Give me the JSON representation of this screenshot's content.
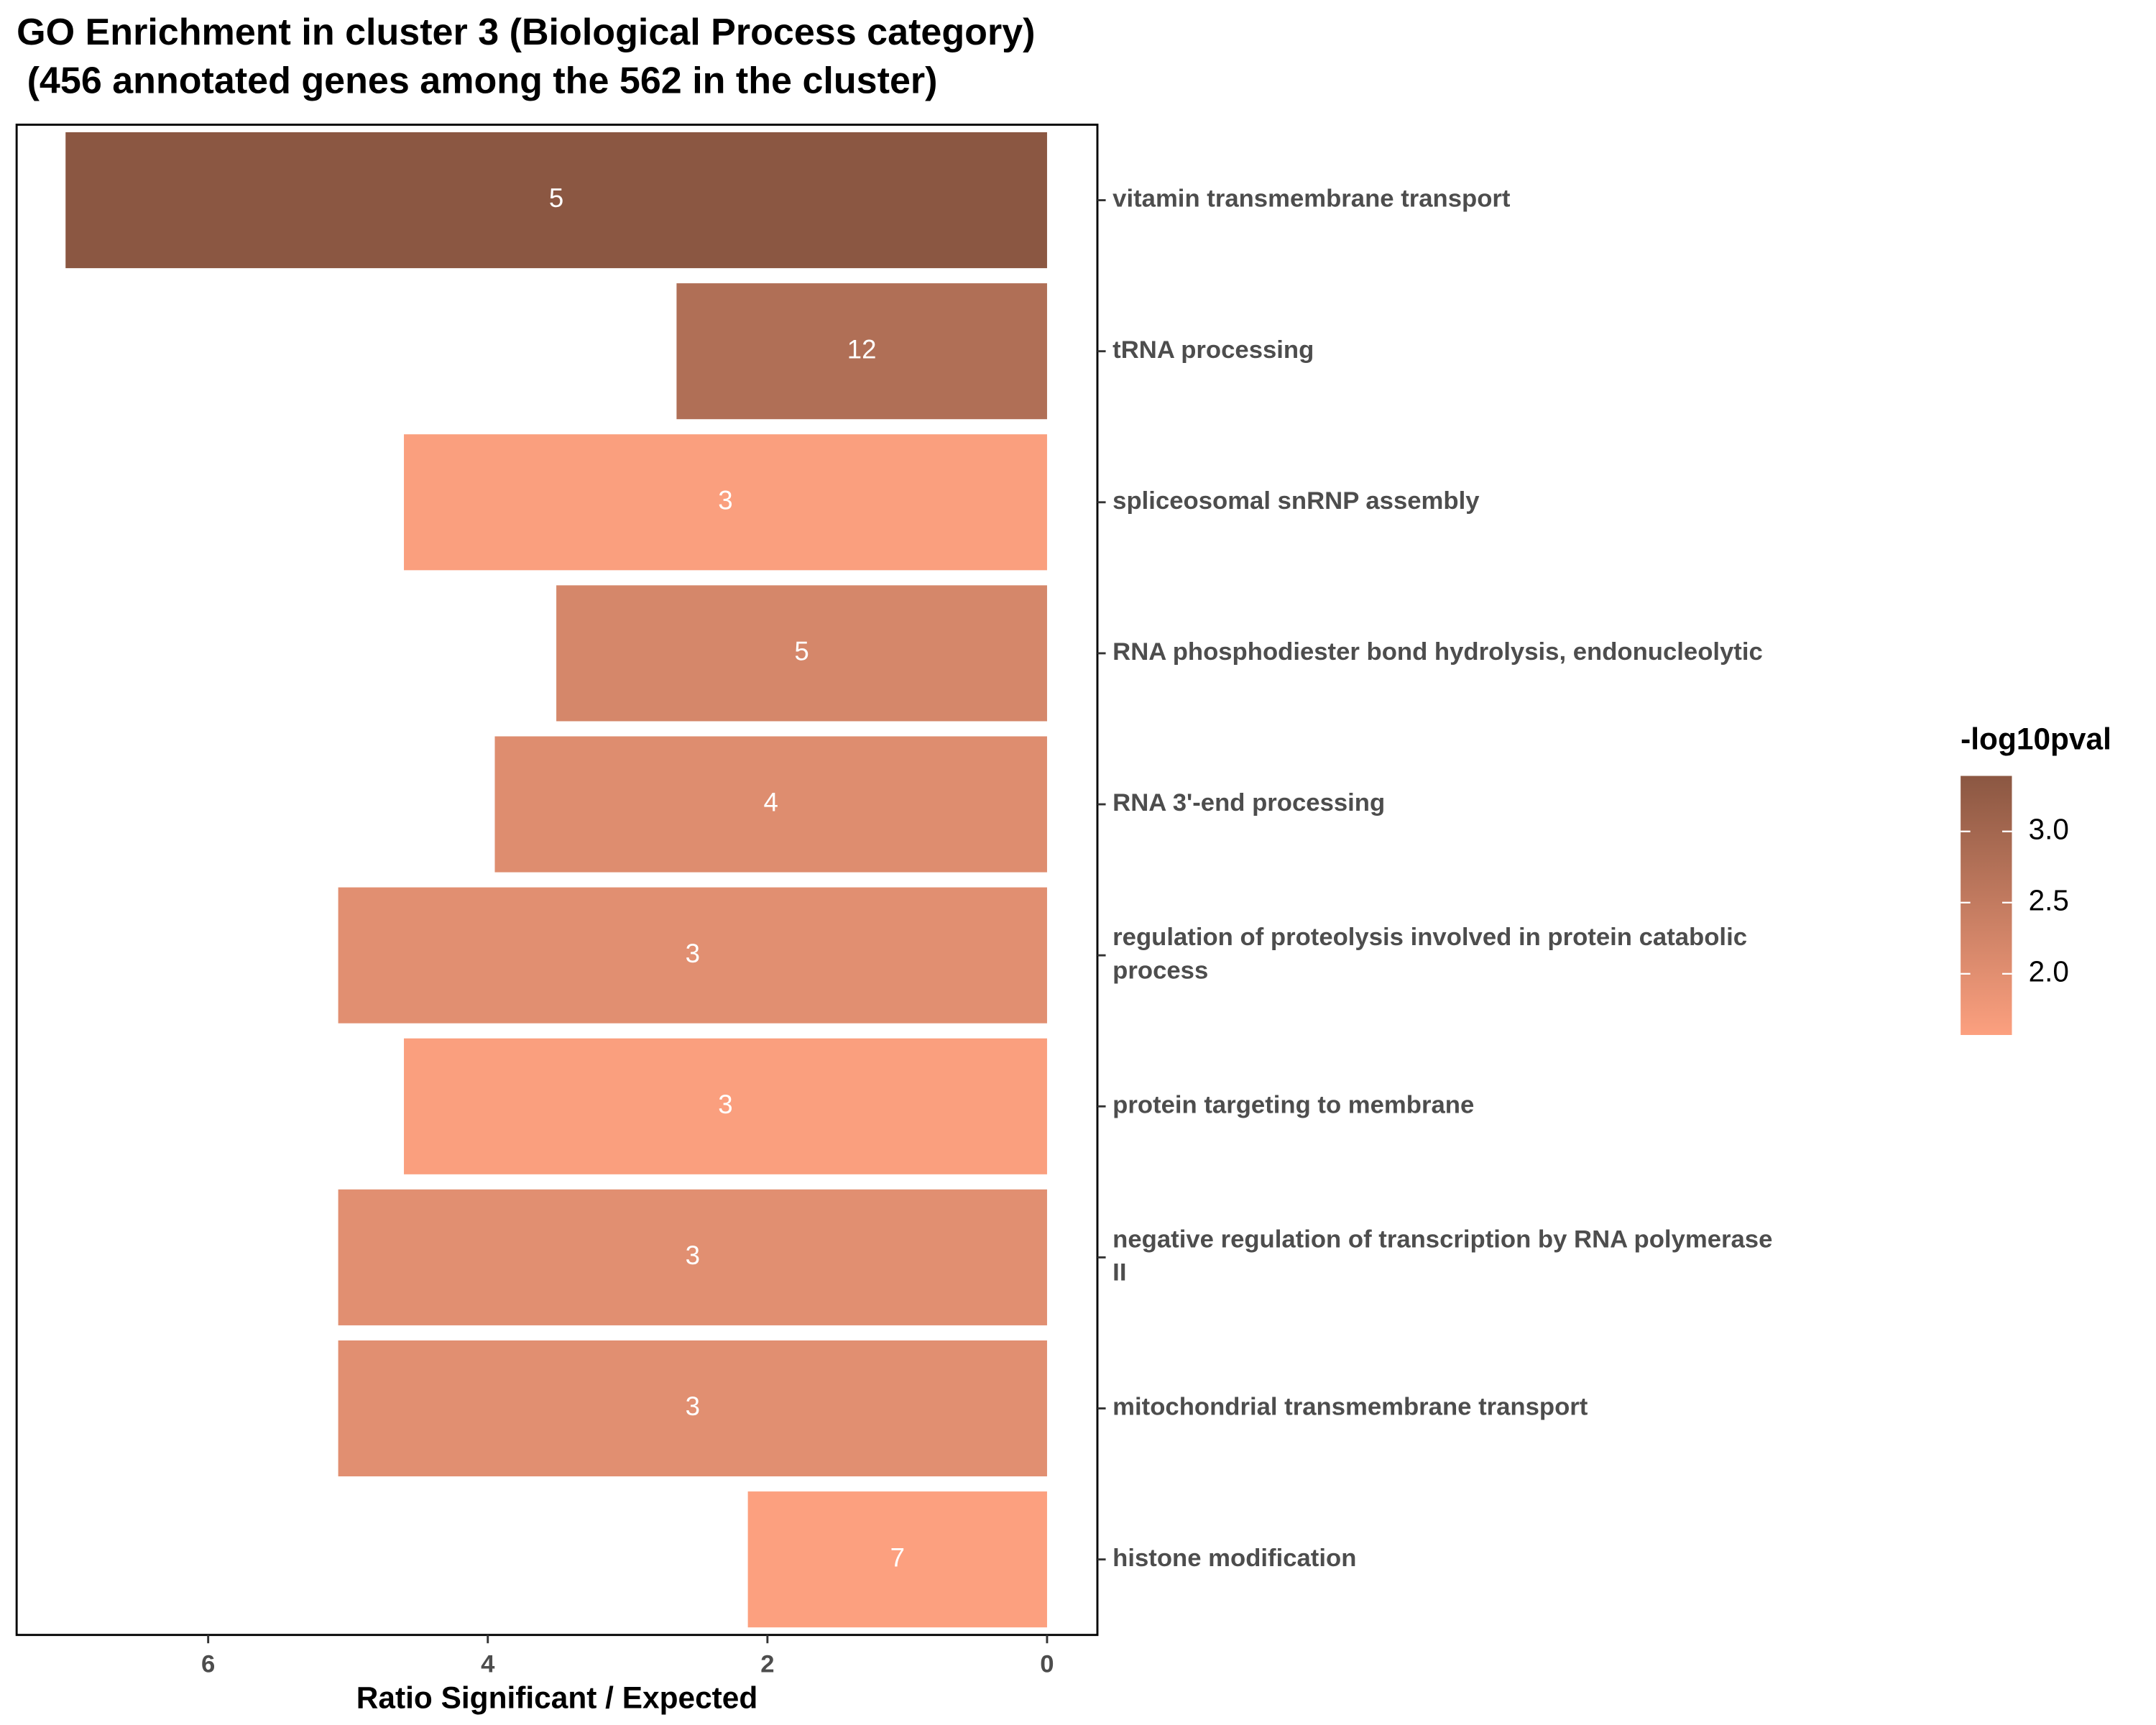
{
  "chart_data": {
    "type": "barh",
    "title": "GO Enrichment in cluster 3 (Biological Process category)",
    "subtitle": " (456 annotated genes among the 562 in the cluster)",
    "x_label": "Ratio Significant / Expected",
    "categories": [
      "vitamin transmembrane transport",
      "tRNA processing",
      "spliceosomal snRNP assembly",
      "RNA phosphodiester bond hydrolysis, endonucleolytic",
      "RNA 3'-end processing",
      "regulation of proteolysis involved in protein catabolic process",
      "protein targeting to membrane",
      "negative regulation of transcription by RNA polymerase II",
      "mitochondrial transmembrane transport",
      "histone modification"
    ],
    "values": [
      7.02,
      2.65,
      4.6,
      3.51,
      3.95,
      5.07,
      4.6,
      5.07,
      5.07,
      2.14
    ],
    "significant": [
      5,
      12,
      3,
      5,
      4,
      3,
      3,
      3,
      3,
      7
    ],
    "neg_log10_pval": [
      3.39,
      2.8,
      1.6,
      2.2,
      2.05,
      2.0,
      1.6,
      2.0,
      2.0,
      1.57
    ],
    "xlim": [
      7.37,
      -0.36
    ],
    "xticks": [
      6,
      4,
      2,
      0
    ],
    "colorbar": {
      "title": "-log10pval",
      "lim": [
        1.57,
        3.39
      ],
      "colors": [
        "#FCA07F",
        "#8B5742"
      ],
      "ticks": [
        {
          "value": 2,
          "label": "2.0"
        },
        {
          "value": 2.5,
          "label": "2.5"
        },
        {
          "value": 3,
          "label": "3.0"
        }
      ]
    }
  }
}
